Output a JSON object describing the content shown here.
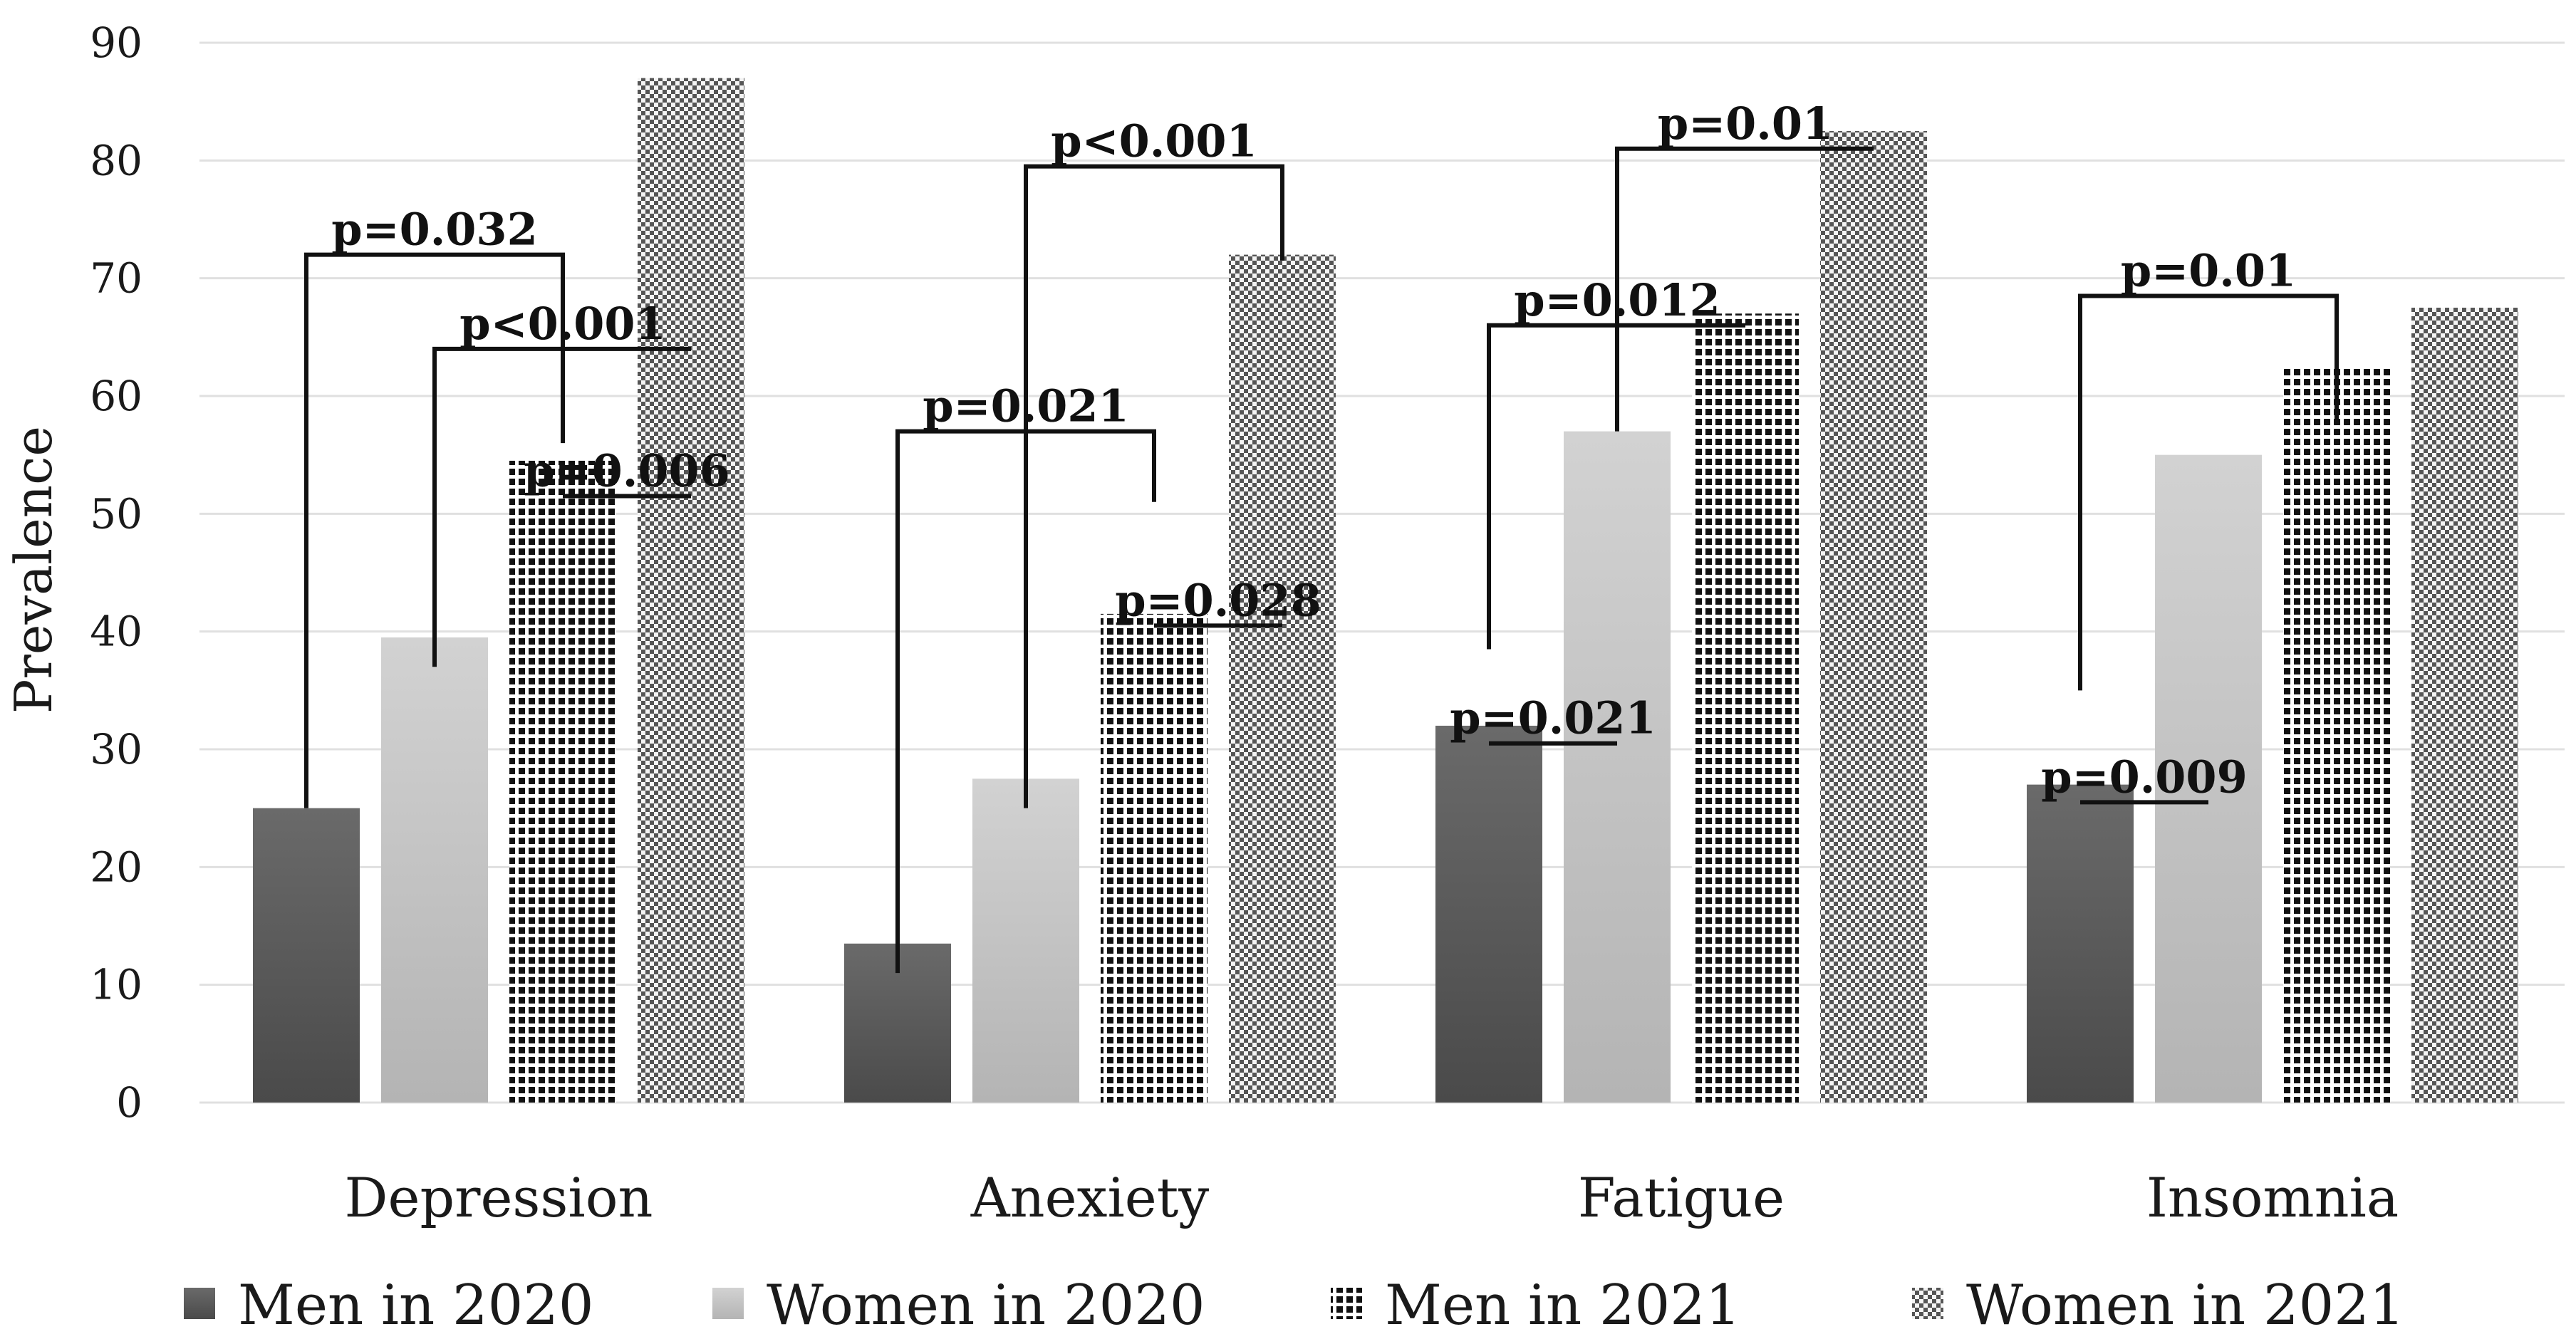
{
  "chart_data": {
    "type": "bar",
    "title": "",
    "xlabel": "",
    "ylabel": "Prevalence",
    "ylim": [
      0,
      90
    ],
    "yticks": [
      0,
      10,
      20,
      30,
      40,
      50,
      60,
      70,
      80,
      90
    ],
    "grid": true,
    "legend_position": "bottom",
    "categories": [
      "Depression",
      "Anexiety",
      "Fatigue",
      "Insomnia"
    ],
    "series": [
      {
        "name": "Men in 2020",
        "pattern": "solid-dark",
        "color": "#5f5f5f",
        "values": [
          25,
          13.5,
          32,
          27
        ]
      },
      {
        "name": "Women in 2020",
        "pattern": "solid-light",
        "color": "#c4c4c4",
        "values": [
          39.5,
          27.5,
          57,
          55
        ]
      },
      {
        "name": "Men in 2021",
        "pattern": "dots",
        "color": "#111111",
        "values": [
          54.5,
          41.5,
          67,
          62.5
        ]
      },
      {
        "name": "Women in 2021",
        "pattern": "checker",
        "color": "#6a6a6a",
        "values": [
          87,
          72,
          82.5,
          67.5
        ]
      }
    ],
    "annotations": [
      {
        "text": "p=0.032",
        "category": 0,
        "from_series": 0,
        "to_series": 2,
        "bracket_y": 72,
        "drop_from": 25,
        "drop_to": 56
      },
      {
        "text": "p<0.001",
        "category": 0,
        "from_series": 1,
        "to_series": 3,
        "bracket_y": 64,
        "drop_from": 37,
        "drop_to": 64
      },
      {
        "text": "p=0.006",
        "category": 0,
        "from_series": 2,
        "to_series": 3,
        "bracket_y": 51.5,
        "drop_from": 51.5,
        "drop_to": 51.5
      },
      {
        "text": "p=0.021",
        "category": 1,
        "from_series": 0,
        "to_series": 2,
        "bracket_y": 57,
        "drop_from": 11,
        "drop_to": 51
      },
      {
        "text": "p<0.001",
        "category": 1,
        "from_series": 1,
        "to_series": 3,
        "bracket_y": 79.5,
        "drop_from": 25,
        "drop_to": 71.5
      },
      {
        "text": "p=0.028",
        "category": 1,
        "from_series": 2,
        "to_series": 3,
        "bracket_y": 40.5,
        "drop_from": 40.5,
        "drop_to": 40.5
      },
      {
        "text": "p=0.021",
        "category": 2,
        "from_series": 0,
        "to_series": 1,
        "bracket_y": 30.5,
        "drop_from": 30.5,
        "drop_to": 30.5
      },
      {
        "text": "p=0.012",
        "category": 2,
        "from_series": 0,
        "to_series": 2,
        "bracket_y": 66,
        "drop_from": 38.5,
        "drop_to": 66
      },
      {
        "text": "p=0.01",
        "category": 2,
        "from_series": 1,
        "to_series": 3,
        "bracket_y": 81,
        "drop_from": 57,
        "drop_to": 81
      },
      {
        "text": "p=0.01",
        "category": 3,
        "from_series": 0,
        "to_series": 2,
        "bracket_y": 68.5,
        "drop_from": 35,
        "drop_to": 58
      },
      {
        "text": "p=0.009",
        "category": 3,
        "from_series": 0,
        "to_series": 1,
        "bracket_y": 25.5,
        "drop_from": 25.5,
        "drop_to": 25.5
      }
    ]
  }
}
